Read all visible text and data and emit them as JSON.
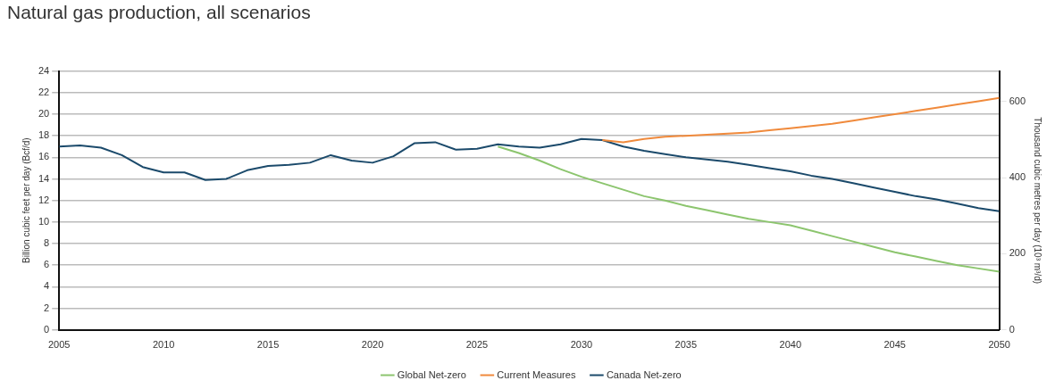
{
  "chart_data": {
    "type": "line",
    "title": "Natural gas production, all scenarios",
    "ylabel": "Billion cubic feet per day (Bcf/d)",
    "y2label": "Thousand cubic metres per day (10³ m³/d)",
    "xlim": [
      2005,
      2050
    ],
    "xticks": [
      2005,
      2010,
      2015,
      2020,
      2025,
      2030,
      2035,
      2040,
      2045,
      2050
    ],
    "ylim": [
      0,
      24
    ],
    "yticks": [
      0,
      2,
      4,
      6,
      8,
      10,
      12,
      14,
      16,
      18,
      20,
      22,
      24
    ],
    "y2lim": [
      0,
      680
    ],
    "y2ticks": [
      0,
      200,
      400,
      600
    ],
    "grid": "y",
    "legend": "bottom",
    "marker": "none",
    "line_style": "solid",
    "series": [
      {
        "name": "Global Net-zero",
        "color": "#8cc56e",
        "x": [
          2026,
          2027,
          2028,
          2029,
          2030,
          2031,
          2032,
          2033,
          2034,
          2035,
          2036,
          2037,
          2038,
          2039,
          2040,
          2041,
          2042,
          2043,
          2044,
          2045,
          2046,
          2047,
          2048,
          2049,
          2050
        ],
        "values": [
          17.0,
          16.4,
          15.7,
          14.9,
          14.2,
          13.6,
          13.0,
          12.4,
          12.0,
          11.5,
          11.1,
          10.7,
          10.3,
          10.0,
          9.7,
          9.2,
          8.7,
          8.2,
          7.7,
          7.2,
          6.8,
          6.4,
          6.0,
          5.7,
          5.4
        ]
      },
      {
        "name": "Current Measures",
        "color": "#f08a3c",
        "x": [
          2031,
          2032,
          2033,
          2034,
          2035,
          2036,
          2037,
          2038,
          2039,
          2040,
          2041,
          2042,
          2043,
          2044,
          2045,
          2046,
          2047,
          2048,
          2049,
          2050
        ],
        "values": [
          17.6,
          17.4,
          17.7,
          17.9,
          18.0,
          18.1,
          18.2,
          18.3,
          18.5,
          18.7,
          18.9,
          19.1,
          19.4,
          19.7,
          20.0,
          20.3,
          20.6,
          20.9,
          21.2,
          21.5
        ]
      },
      {
        "name": "Canada Net-zero",
        "color": "#1b4a6b",
        "x": [
          2005,
          2006,
          2007,
          2008,
          2009,
          2010,
          2011,
          2012,
          2013,
          2014,
          2015,
          2016,
          2017,
          2018,
          2019,
          2020,
          2021,
          2022,
          2023,
          2024,
          2025,
          2026,
          2027,
          2028,
          2029,
          2030,
          2031,
          2032,
          2033,
          2034,
          2035,
          2036,
          2037,
          2038,
          2039,
          2040,
          2041,
          2042,
          2043,
          2044,
          2045,
          2046,
          2047,
          2048,
          2049,
          2050
        ],
        "values": [
          17.0,
          17.1,
          16.9,
          16.2,
          15.1,
          14.6,
          14.6,
          13.9,
          14.0,
          14.8,
          15.2,
          15.3,
          15.5,
          16.2,
          15.7,
          15.5,
          16.1,
          17.3,
          17.4,
          16.7,
          16.8,
          17.2,
          17.0,
          16.9,
          17.2,
          17.7,
          17.6,
          17.0,
          16.6,
          16.3,
          16.0,
          15.8,
          15.6,
          15.3,
          15.0,
          14.7,
          14.3,
          14.0,
          13.6,
          13.2,
          12.8,
          12.4,
          12.1,
          11.7,
          11.3,
          11.0
        ]
      }
    ]
  }
}
